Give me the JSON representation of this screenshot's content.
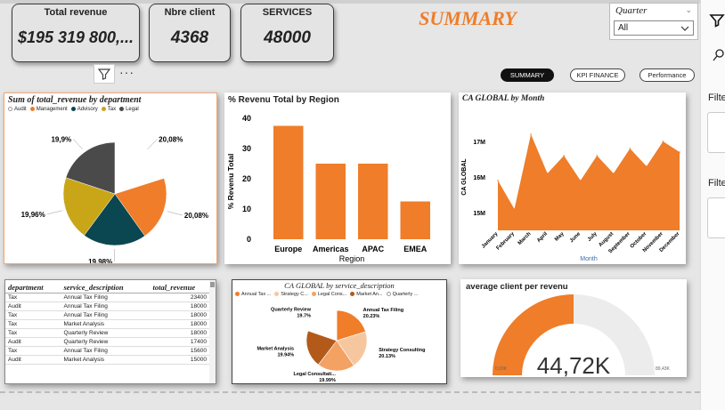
{
  "kpis": [
    {
      "label": "Total revenue",
      "value": "$195 319 800,..."
    },
    {
      "label": "Nbre  client",
      "value": "4368"
    },
    {
      "label": "SERVICES",
      "value": "48000"
    }
  ],
  "title": "SUMMARY",
  "slicer": {
    "label": "Quarter",
    "value": "All"
  },
  "nav": {
    "summary": "SUMMARY",
    "kpi": "KPI FINANCE",
    "perf": "Performance"
  },
  "filter_pane": {
    "label1": "Filte",
    "label2": "Filte"
  },
  "colors": {
    "orange": "#ef7d2a",
    "teal": "#0b4750",
    "gold": "#c9a617",
    "dark": "#4a4a4a"
  },
  "pie1": {
    "title": "Sum of total_revenue by department",
    "legend": [
      "Audit",
      "Management",
      "Advisory",
      "Tax",
      "Legal"
    ],
    "labels": [
      "20,08%",
      "20,08%",
      "19,98%",
      "19,96%",
      "19,9%"
    ]
  },
  "pie2": {
    "title": "CA GLOBAL by service_description",
    "legend": [
      "Annual Tax ...",
      "Strategy C...",
      "Legal Cons...",
      "Market An...",
      "Quarterly ..."
    ],
    "labels": [
      {
        "name": "Annual Tax Filing",
        "pct": "20.23%"
      },
      {
        "name": "Strategy Consulting",
        "pct": "20.13%"
      },
      {
        "name": "Legal Consultati...",
        "pct": "19.99%"
      },
      {
        "name": "Market Analysis",
        "pct": "19.94%"
      },
      {
        "name": "Quarterly Review",
        "pct": "19.7%"
      }
    ]
  },
  "table": {
    "headers": [
      "department",
      "service_description",
      "total_revenue"
    ],
    "rows": [
      [
        "Tax",
        "Annual Tax Filing",
        "23400"
      ],
      [
        "Audit",
        "Annual Tax Filing",
        "18000"
      ],
      [
        "Tax",
        "Annual Tax Filing",
        "18000"
      ],
      [
        "Tax",
        "Market Analysis",
        "18000"
      ],
      [
        "Tax",
        "Quarterly Review",
        "18000"
      ],
      [
        "Audit",
        "Quarterly Review",
        "17400"
      ],
      [
        "Tax",
        "Annual Tax Filing",
        "15600"
      ],
      [
        "Audit",
        "Market Analysis",
        "15000"
      ]
    ]
  },
  "gauge": {
    "title": "average client per revenu",
    "value": "44,72K",
    "min": "0,00K",
    "max": "89,43K",
    "fraction": 0.5
  },
  "chart_data": [
    {
      "type": "pie",
      "title": "Sum of total_revenue by department",
      "categories": [
        "Audit",
        "Management",
        "Advisory",
        "Tax",
        "Legal"
      ],
      "values": [
        20.08,
        20.08,
        19.98,
        19.96,
        19.9
      ]
    },
    {
      "type": "bar",
      "title": "% Revenu Total by Region",
      "categories": [
        "Europe",
        "Americas",
        "APAC",
        "EMEA"
      ],
      "values": [
        37.5,
        25,
        25,
        12.5
      ],
      "xlabel": "Region",
      "ylabel": "% Revenu Total",
      "ylim": [
        0,
        40
      ],
      "yticks": [
        0,
        10,
        20,
        30,
        40
      ]
    },
    {
      "type": "area",
      "title": "CA GLOBAL by Month",
      "categories": [
        "January",
        "February",
        "March",
        "April",
        "May",
        "June",
        "July",
        "August",
        "September",
        "October",
        "November",
        "December"
      ],
      "values": [
        15.9,
        15.1,
        17.2,
        16.1,
        16.6,
        15.9,
        16.6,
        16.1,
        16.8,
        16.3,
        17.0,
        16.7
      ],
      "xlabel": "Month",
      "ylabel": "CA GLOBAL",
      "ylim": [
        14.5,
        17.7
      ],
      "yticks": [
        15,
        16,
        17
      ],
      "ytick_labels": [
        "15M",
        "16M",
        "17M"
      ]
    },
    {
      "type": "pie",
      "title": "CA GLOBAL by service_description",
      "categories": [
        "Annual Tax Filing",
        "Strategy Consulting",
        "Legal Consultati...",
        "Market Analysis",
        "Quarterly Review"
      ],
      "values": [
        20.23,
        20.13,
        19.99,
        19.94,
        19.7
      ]
    }
  ]
}
